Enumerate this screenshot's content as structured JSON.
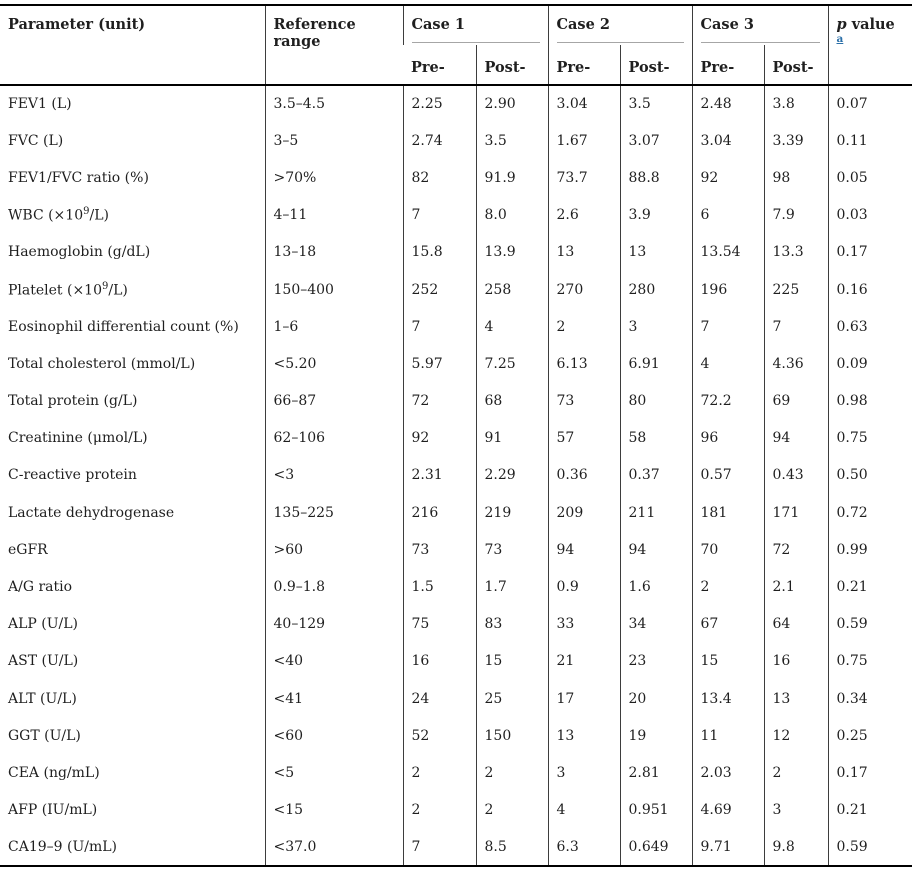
{
  "table": {
    "header": {
      "parameter": "Parameter (unit)",
      "reference": "Reference range",
      "cases": [
        "Case 1",
        "Case 2",
        "Case 3"
      ],
      "pre_label": "Pre-",
      "post_label": "Post-",
      "p_value": {
        "p": "p",
        "value": " value ",
        "footnote": "a"
      }
    },
    "rows": [
      {
        "parameter": "FEV1 (L)",
        "reference": "3.5–4.5",
        "values": [
          "2.25",
          "2.90",
          "3.04",
          "3.5",
          "2.48",
          "3.8"
        ],
        "p": "0.07"
      },
      {
        "parameter": "FVC (L)",
        "reference": "3–5",
        "values": [
          "2.74",
          "3.5",
          "1.67",
          "3.07",
          "3.04",
          "3.39"
        ],
        "p": "0.11"
      },
      {
        "parameter": "FEV1/FVC ratio (%)",
        "reference": ">70%",
        "values": [
          "82",
          "91.9",
          "73.7",
          "88.8",
          "92",
          "98"
        ],
        "p": "0.05"
      },
      {
        "parameter": "WBC (×10⁹/L)",
        "reference": "4–11",
        "values": [
          "7",
          "8.0",
          "2.6",
          "3.9",
          "6",
          "7.9"
        ],
        "p": "0.03"
      },
      {
        "parameter": "Haemoglobin (g/dL)",
        "reference": "13–18",
        "values": [
          "15.8",
          "13.9",
          "13",
          "13",
          "13.54",
          "13.3"
        ],
        "p": "0.17"
      },
      {
        "parameter": "Platelet (×10⁹/L)",
        "reference": "150–400",
        "values": [
          "252",
          "258",
          "270",
          "280",
          "196",
          "225"
        ],
        "p": "0.16"
      },
      {
        "parameter": "Eosinophil differential count (%)",
        "reference": "1–6",
        "values": [
          "7",
          "4",
          "2",
          "3",
          "7",
          "7"
        ],
        "p": "0.63"
      },
      {
        "parameter": "Total cholesterol (mmol/L)",
        "reference": "<5.20",
        "values": [
          "5.97",
          "7.25",
          "6.13",
          "6.91",
          "4",
          "4.36"
        ],
        "p": "0.09"
      },
      {
        "parameter": "Total protein (g/L)",
        "reference": "66–87",
        "values": [
          "72",
          "68",
          "73",
          "80",
          "72.2",
          "69"
        ],
        "p": "0.98"
      },
      {
        "parameter": "Creatinine (μmol/L)",
        "reference": "62–106",
        "values": [
          "92",
          "91",
          "57",
          "58",
          "96",
          "94"
        ],
        "p": "0.75"
      },
      {
        "parameter": "C-reactive protein",
        "reference": "<3",
        "values": [
          "2.31",
          "2.29",
          "0.36",
          "0.37",
          "0.57",
          "0.43"
        ],
        "p": "0.50"
      },
      {
        "parameter": "Lactate dehydrogenase",
        "reference": "135–225",
        "values": [
          "216",
          "219",
          "209",
          "211",
          "181",
          "171"
        ],
        "p": "0.72"
      },
      {
        "parameter": "eGFR",
        "reference": ">60",
        "values": [
          "73",
          "73",
          "94",
          "94",
          "70",
          "72"
        ],
        "p": "0.99"
      },
      {
        "parameter": "A/G ratio",
        "reference": "0.9–1.8",
        "values": [
          "1.5",
          "1.7",
          "0.9",
          "1.6",
          "2",
          "2.1"
        ],
        "p": "0.21"
      },
      {
        "parameter": "ALP (U/L)",
        "reference": "40–129",
        "values": [
          "75",
          "83",
          "33",
          "34",
          "67",
          "64"
        ],
        "p": "0.59"
      },
      {
        "parameter": "AST (U/L)",
        "reference": "<40",
        "values": [
          "16",
          "15",
          "21",
          "23",
          "15",
          "16"
        ],
        "p": "0.75"
      },
      {
        "parameter": "ALT (U/L)",
        "reference": "<41",
        "values": [
          "24",
          "25",
          "17",
          "20",
          "13.4",
          "13"
        ],
        "p": "0.34"
      },
      {
        "parameter": "GGT (U/L)",
        "reference": "<60",
        "values": [
          "52",
          "150",
          "13",
          "19",
          "11",
          "12"
        ],
        "p": "0.25"
      },
      {
        "parameter": "CEA (ng/mL)",
        "reference": "<5",
        "values": [
          "2",
          "2",
          "3",
          "2.81",
          "2.03",
          "2"
        ],
        "p": "0.17"
      },
      {
        "parameter": "AFP (IU/mL)",
        "reference": "<15",
        "values": [
          "2",
          "2",
          "4",
          "0.951",
          "4.69",
          "3"
        ],
        "p": "0.21"
      },
      {
        "parameter": "CA19–9 (U/mL)",
        "reference": "<37.0",
        "values": [
          "7",
          "8.5",
          "6.3",
          "0.649",
          "9.71",
          "9.8"
        ],
        "p": "0.59"
      }
    ]
  },
  "colors": {
    "text": "#1f1f1f",
    "heavy_border": "#000000",
    "column_separator": "#3d3d3d",
    "case_underline": "#a6a6a6",
    "footnote_link": "#2a6fa8"
  }
}
